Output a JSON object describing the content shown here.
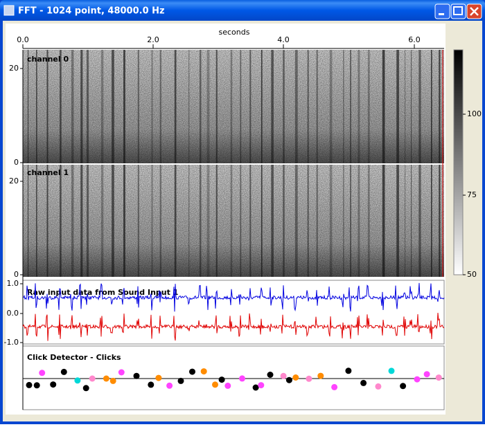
{
  "window": {
    "title": "FFT - 1024 point, 48000.0 Hz"
  },
  "time_axis": {
    "label": "seconds",
    "ticks": [
      "0.0",
      "2.0",
      "4.0",
      "6.0"
    ]
  },
  "panels": [
    {
      "label": "channel 0",
      "ticks": [
        "20",
        "0"
      ]
    },
    {
      "label": "channel 1",
      "ticks": [
        "20",
        "0"
      ]
    },
    {
      "label": "Raw input data from Sound Input 1",
      "ticks": [
        "1.0",
        "0.0",
        "-1.0"
      ]
    },
    {
      "label": "Click Detector - Clicks",
      "ticks": []
    }
  ],
  "colorbar": {
    "ticks": [
      "100",
      "75",
      "50"
    ]
  }
}
